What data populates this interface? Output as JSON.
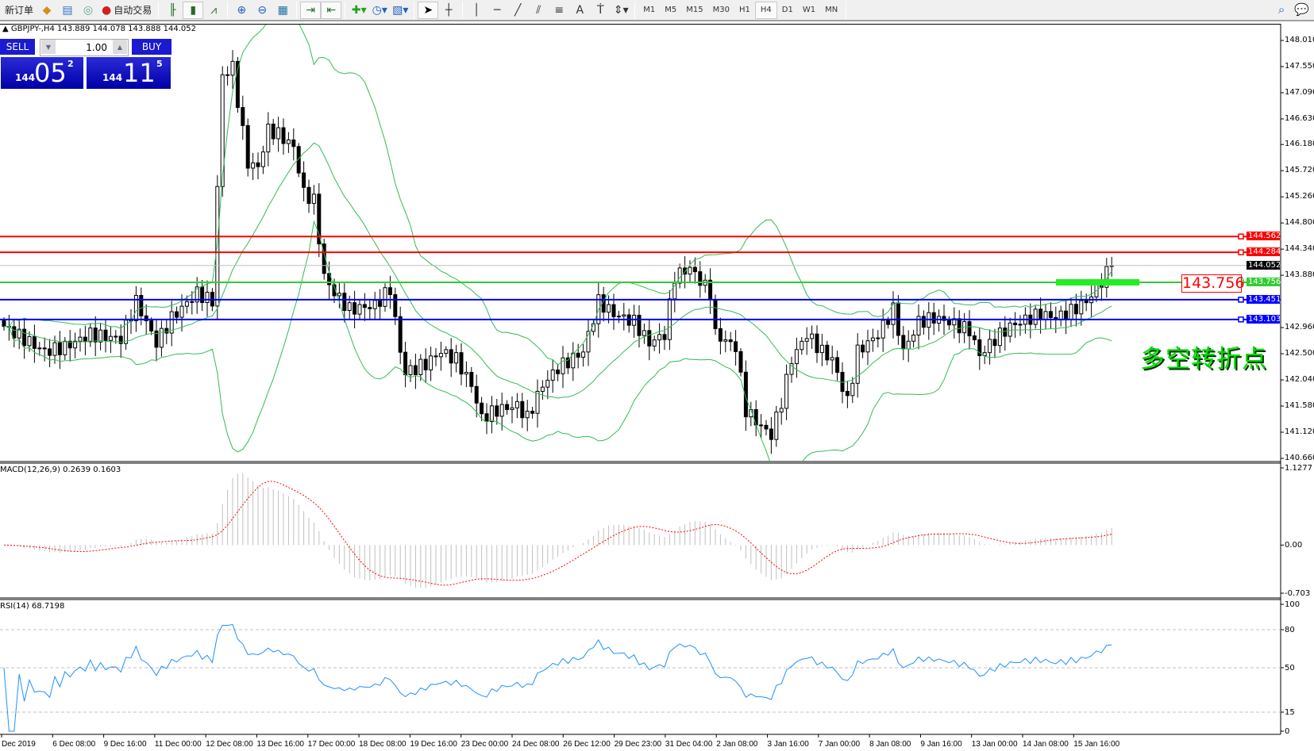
{
  "toolbar": {
    "new_order": "新订单",
    "auto_trading": "自动交易",
    "icons": [
      "gold-bars-icon",
      "market-watch-icon",
      "signals-icon",
      "auto-trading-icon",
      "bar-chart-icon",
      "candlestick-icon",
      "line-chart-icon",
      "zoom-in-icon",
      "zoom-out-icon",
      "tile-windows-icon",
      "auto-scroll-icon",
      "chart-shift-icon",
      "indicators-icon",
      "periods-icon",
      "templates-icon",
      "cursor-icon",
      "crosshair-icon",
      "vertical-line-icon",
      "horizontal-line-icon",
      "trendline-icon",
      "fibonacci-icon",
      "channel-icon",
      "text-icon",
      "text-label-icon",
      "arrows-icon"
    ],
    "timeframes": [
      "M1",
      "M5",
      "M15",
      "M30",
      "H1",
      "H4",
      "D1",
      "W1",
      "MN"
    ],
    "active_timeframe": "H4"
  },
  "chart": {
    "symbol_line": "GBPJPY-,H4  143.889 144.078 143.888 144.052",
    "trade_panel": {
      "sell": "SELL",
      "buy": "BUY",
      "lot": "1.00",
      "sell_price": {
        "big": "144",
        "main": "05",
        "sup": "2"
      },
      "buy_price": {
        "big": "144",
        "main": "11",
        "sup": "5"
      }
    },
    "price_ticks": [
      "148.010",
      "147.550",
      "147.090",
      "146.630",
      "146.180",
      "145.720",
      "145.260",
      "144.800",
      "144.340",
      "143.880",
      "142.960",
      "142.500",
      "142.040",
      "141.580",
      "141.120",
      "140.660"
    ],
    "lines": [
      {
        "price": 144.562,
        "label": "144.562",
        "color": "#ff0000"
      },
      {
        "price": 144.284,
        "label": "144.284",
        "color": "#ff0000"
      },
      {
        "price": 144.052,
        "label": "144.052",
        "color": "#000000",
        "line": "#c0c0c0"
      },
      {
        "price": 143.756,
        "label": "143.756",
        "color": "#33cc33"
      },
      {
        "price": 143.451,
        "label": "143.451",
        "color": "#0000ff"
      },
      {
        "price": 143.103,
        "label": "143.103",
        "color": "#0000ff"
      }
    ],
    "pivot_label": "143.756",
    "annotation": "多空转折点",
    "time_labels": [
      "Dec 2019",
      "6 Dec 08:00",
      "9 Dec 16:00",
      "11 Dec 00:00",
      "12 Dec 08:00",
      "13 Dec 16:00",
      "17 Dec 00:00",
      "18 Dec 08:00",
      "19 Dec 16:00",
      "23 Dec 00:00",
      "24 Dec 08:00",
      "26 Dec 12:00",
      "29 Dec 23:00",
      "31 Dec 04:00",
      "2 Jan 08:00",
      "3 Jan 16:00",
      "7 Jan 00:00",
      "8 Jan 08:00",
      "9 Jan 16:00",
      "13 Jan 00:00",
      "14 Jan 08:00",
      "15 Jan 16:00"
    ],
    "macd": {
      "label": "MACD(12,26,9) 0.2639 0.1603",
      "ticks": [
        "1.1277",
        "0.00",
        "-0.703"
      ],
      "range": [
        -0.703,
        1.1277
      ]
    },
    "rsi": {
      "label": "RSI(14) 68.7198",
      "ticks": [
        "100",
        "80",
        "50",
        "15",
        "0"
      ],
      "levels": [
        80,
        50,
        15
      ]
    },
    "colors": {
      "bollinger": "#33bb55",
      "macd_hist": "#c0c0c0",
      "macd_signal": "#ff0000",
      "rsi": "#1e90ff",
      "bull": "#ffffff",
      "bear": "#000000"
    }
  },
  "chart_data": {
    "type": "candlestick",
    "symbol": "GBPJPY",
    "timeframe": "H4",
    "ylim": [
      140.66,
      148.01
    ],
    "indicators": [
      "Bollinger Bands(20,2)",
      "MACD(12,26,9)",
      "RSI(14)"
    ],
    "close_keypoints_bar_price": [
      [
        0,
        142.98
      ],
      [
        8,
        142.54
      ],
      [
        12,
        142.62
      ],
      [
        17,
        142.84
      ],
      [
        23,
        142.76
      ],
      [
        26,
        143.42
      ],
      [
        30,
        142.69
      ],
      [
        33,
        143.13
      ],
      [
        38,
        143.57
      ],
      [
        41,
        143.42
      ],
      [
        43,
        147.39
      ],
      [
        45,
        147.54
      ],
      [
        46,
        146.95
      ],
      [
        48,
        145.85
      ],
      [
        50,
        145.78
      ],
      [
        52,
        146.44
      ],
      [
        54,
        146.36
      ],
      [
        57,
        146.14
      ],
      [
        59,
        145.33
      ],
      [
        61,
        145.19
      ],
      [
        63,
        143.86
      ],
      [
        65,
        143.57
      ],
      [
        68,
        143.28
      ],
      [
        73,
        143.35
      ],
      [
        76,
        143.64
      ],
      [
        78,
        142.54
      ],
      [
        79,
        142.17
      ],
      [
        83,
        142.32
      ],
      [
        86,
        142.54
      ],
      [
        89,
        142.4
      ],
      [
        92,
        141.95
      ],
      [
        94,
        141.37
      ],
      [
        97,
        141.51
      ],
      [
        101,
        141.59
      ],
      [
        103,
        141.37
      ],
      [
        106,
        141.95
      ],
      [
        109,
        142.25
      ],
      [
        114,
        142.54
      ],
      [
        117,
        143.42
      ],
      [
        120,
        143.2
      ],
      [
        124,
        143.06
      ],
      [
        127,
        142.69
      ],
      [
        130,
        142.84
      ],
      [
        132,
        143.86
      ],
      [
        135,
        144.01
      ],
      [
        139,
        143.57
      ],
      [
        140,
        142.84
      ],
      [
        144,
        142.62
      ],
      [
        146,
        141.51
      ],
      [
        149,
        141.22
      ],
      [
        151,
        141.07
      ],
      [
        153,
        141.66
      ],
      [
        155,
        142.4
      ],
      [
        158,
        142.84
      ],
      [
        161,
        142.54
      ],
      [
        163,
        142.4
      ],
      [
        166,
        141.66
      ],
      [
        168,
        142.54
      ],
      [
        172,
        142.84
      ],
      [
        175,
        143.28
      ],
      [
        177,
        142.54
      ],
      [
        180,
        143.06
      ],
      [
        183,
        143.13
      ],
      [
        186,
        143.06
      ],
      [
        190,
        142.91
      ],
      [
        192,
        142.47
      ],
      [
        195,
        142.76
      ],
      [
        198,
        142.98
      ],
      [
        200,
        143.06
      ],
      [
        204,
        143.2
      ],
      [
        207,
        143.13
      ],
      [
        210,
        143.25
      ],
      [
        213,
        143.42
      ],
      [
        215,
        143.64
      ],
      [
        218,
        144.052
      ]
    ]
  }
}
